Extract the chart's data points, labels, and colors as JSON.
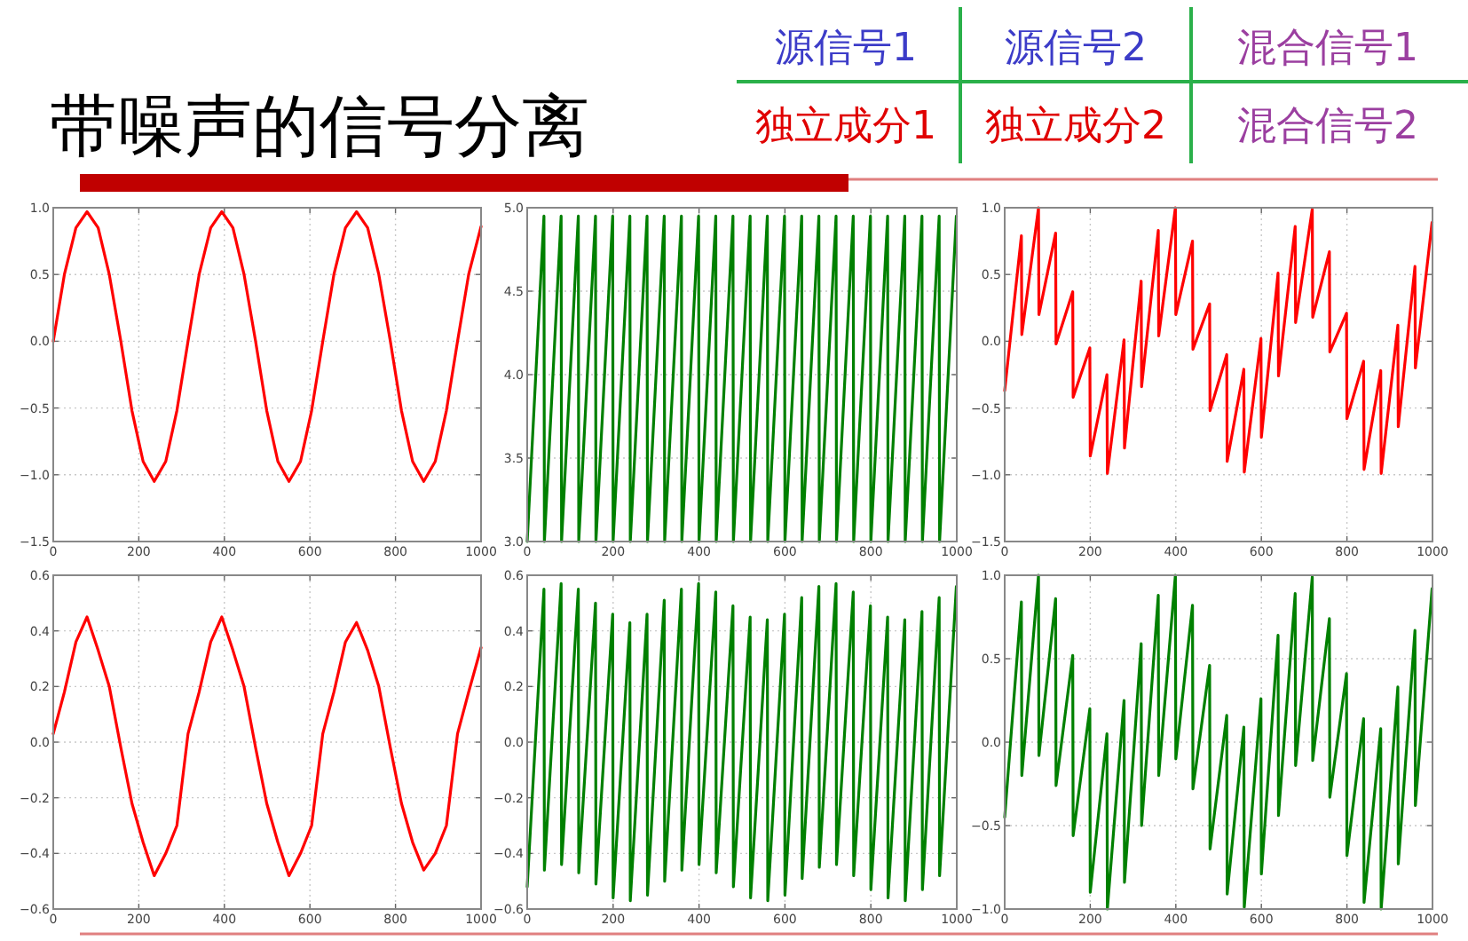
{
  "chart_data": [
    {
      "type": "other",
      "title": "带噪声的信号分离",
      "annotations": [
        "源信号1",
        "源信号2",
        "混合信号1",
        "独立成分1",
        "独立成分2",
        "混合信号2"
      ]
    },
    {
      "type": "line",
      "grid": true,
      "xlim": [
        0,
        1000
      ],
      "xticks": [
        0,
        200,
        400,
        600,
        800,
        1000
      ],
      "ylim": [
        -1.5,
        1.0
      ],
      "yticks": [
        {
          "value": -1.5,
          "label": "−1.5"
        },
        {
          "value": -1.0,
          "label": "−1.0"
        },
        {
          "value": -0.5,
          "label": "−0.5"
        },
        {
          "value": 0,
          "label": "0.0"
        },
        {
          "value": 0.5,
          "label": "0.5"
        },
        {
          "value": 1.0,
          "label": "1.0"
        }
      ],
      "x": [
        0,
        26,
        53,
        79,
        105,
        131,
        158,
        184,
        210,
        236,
        263,
        289,
        315,
        341,
        368,
        394,
        420,
        446,
        473,
        499,
        525,
        551,
        578,
        604,
        630,
        656,
        683,
        709,
        735,
        761,
        788,
        814,
        840,
        866,
        893,
        919,
        945,
        971,
        1000
      ],
      "series": [
        {
          "color": "#ff0000",
          "values": [
            0,
            0.5,
            0.85,
            0.97,
            0.85,
            0.5,
            0,
            -0.52,
            -0.9,
            -1.05,
            -0.9,
            -0.52,
            0,
            0.5,
            0.85,
            0.97,
            0.85,
            0.5,
            0,
            -0.52,
            -0.9,
            -1.05,
            -0.9,
            -0.52,
            0,
            0.5,
            0.85,
            0.97,
            0.85,
            0.5,
            0,
            -0.52,
            -0.9,
            -1.05,
            -0.9,
            -0.52,
            0,
            0.5,
            0.86
          ]
        }
      ]
    },
    {
      "type": "line",
      "grid": true,
      "xlim": [
        0,
        1000
      ],
      "xticks": [
        0,
        200,
        400,
        600,
        800,
        1000
      ],
      "ylim": [
        3.0,
        5.0
      ],
      "yticks": [
        {
          "value": 3.0,
          "label": "3.0"
        },
        {
          "value": 3.5,
          "label": "3.5"
        },
        {
          "value": 4.0,
          "label": "4.0"
        },
        {
          "value": 4.5,
          "label": "4.5"
        },
        {
          "value": 5.0,
          "label": "5.0"
        }
      ],
      "x": [
        0,
        39,
        40,
        79,
        80,
        119,
        120,
        159,
        160,
        199,
        200,
        239,
        240,
        279,
        280,
        319,
        320,
        359,
        360,
        399,
        400,
        439,
        440,
        479,
        480,
        519,
        520,
        559,
        560,
        599,
        600,
        639,
        640,
        679,
        680,
        719,
        720,
        759,
        760,
        799,
        800,
        839,
        840,
        879,
        880,
        919,
        920,
        959,
        960,
        999
      ],
      "series": [
        {
          "color": "#008000",
          "values": [
            3.0,
            4.95,
            3.0,
            4.95,
            3.0,
            4.95,
            3.0,
            4.95,
            3.0,
            4.95,
            3.0,
            4.95,
            3.0,
            4.95,
            3.0,
            4.95,
            3.0,
            4.95,
            3.0,
            4.95,
            3.0,
            4.95,
            3.0,
            4.95,
            3.0,
            4.95,
            3.0,
            4.95,
            3.0,
            4.95,
            3.0,
            4.95,
            3.0,
            4.95,
            3.0,
            4.95,
            3.0,
            4.95,
            3.0,
            4.95,
            3.0,
            4.95,
            3.0,
            4.95,
            3.0,
            4.95,
            3.0,
            4.95,
            3.0,
            4.95
          ]
        }
      ]
    },
    {
      "type": "line",
      "grid": true,
      "xlim": [
        0,
        1000
      ],
      "xticks": [
        0,
        200,
        400,
        600,
        800,
        1000
      ],
      "ylim": [
        -1.5,
        1.0
      ],
      "yticks": [
        {
          "value": -1.5,
          "label": "−1.5"
        },
        {
          "value": -1.0,
          "label": "−1.0"
        },
        {
          "value": -0.5,
          "label": "−0.5"
        },
        {
          "value": 0,
          "label": "0.0"
        },
        {
          "value": 0.5,
          "label": "0.5"
        },
        {
          "value": 1.0,
          "label": "1.0"
        }
      ],
      "x": [
        0,
        39,
        40,
        79,
        80,
        119,
        120,
        159,
        160,
        199,
        200,
        239,
        240,
        279,
        280,
        319,
        320,
        359,
        360,
        399,
        400,
        439,
        440,
        479,
        480,
        519,
        520,
        559,
        560,
        599,
        600,
        639,
        640,
        679,
        680,
        719,
        720,
        759,
        760,
        799,
        800,
        839,
        840,
        879,
        880,
        919,
        920,
        959,
        960,
        999
      ],
      "series": [
        {
          "color": "#ff0000",
          "values": [
            -0.37,
            0.79,
            0.05,
            1.0,
            0.2,
            0.81,
            -0.02,
            0.37,
            -0.42,
            -0.05,
            -0.86,
            -0.25,
            -0.99,
            0.01,
            -0.8,
            0.45,
            -0.34,
            0.83,
            0.04,
            1.0,
            0.2,
            0.75,
            -0.06,
            0.28,
            -0.52,
            -0.1,
            -0.9,
            -0.21,
            -0.98,
            0.02,
            -0.72,
            0.51,
            -0.26,
            0.86,
            0.14,
            0.99,
            0.18,
            0.67,
            -0.08,
            0.21,
            -0.58,
            -0.15,
            -0.96,
            -0.22,
            -0.99,
            0.12,
            -0.64,
            0.56,
            -0.2,
            0.89
          ]
        }
      ]
    },
    {
      "type": "line",
      "grid": true,
      "xlim": [
        0,
        1000
      ],
      "xticks": [
        0,
        200,
        400,
        600,
        800,
        1000
      ],
      "ylim": [
        -0.6,
        0.6
      ],
      "yticks": [
        {
          "value": -0.6,
          "label": "−0.6"
        },
        {
          "value": -0.4,
          "label": "−0.4"
        },
        {
          "value": -0.2,
          "label": "−0.2"
        },
        {
          "value": 0,
          "label": "0.0"
        },
        {
          "value": 0.2,
          "label": "0.2"
        },
        {
          "value": 0.4,
          "label": "0.4"
        },
        {
          "value": 0.6,
          "label": "0.6"
        }
      ],
      "x": [
        0,
        26,
        53,
        79,
        105,
        131,
        158,
        184,
        210,
        236,
        263,
        289,
        315,
        341,
        368,
        394,
        420,
        446,
        473,
        499,
        525,
        551,
        578,
        604,
        630,
        656,
        683,
        709,
        735,
        761,
        788,
        814,
        840,
        866,
        893,
        919,
        945,
        971,
        1000
      ],
      "series": [
        {
          "color": "#ff0000",
          "values": [
            0.03,
            0.18,
            0.36,
            0.45,
            0.33,
            0.2,
            -0.02,
            -0.22,
            -0.36,
            -0.48,
            -0.4,
            -0.3,
            0.03,
            0.18,
            0.36,
            0.45,
            0.33,
            0.2,
            -0.02,
            -0.22,
            -0.36,
            -0.48,
            -0.4,
            -0.3,
            0.03,
            0.18,
            0.36,
            0.43,
            0.33,
            0.2,
            -0.02,
            -0.22,
            -0.36,
            -0.46,
            -0.4,
            -0.3,
            0.03,
            0.18,
            0.34
          ]
        }
      ]
    },
    {
      "type": "line",
      "grid": true,
      "xlim": [
        0,
        1000
      ],
      "xticks": [
        0,
        200,
        400,
        600,
        800,
        1000
      ],
      "ylim": [
        -0.6,
        0.6
      ],
      "yticks": [
        {
          "value": -0.6,
          "label": "−0.6"
        },
        {
          "value": -0.4,
          "label": "−0.4"
        },
        {
          "value": -0.2,
          "label": "−0.2"
        },
        {
          "value": 0,
          "label": "0.0"
        },
        {
          "value": 0.2,
          "label": "0.2"
        },
        {
          "value": 0.4,
          "label": "0.4"
        },
        {
          "value": 0.6,
          "label": "0.6"
        }
      ],
      "x": [
        0,
        39,
        40,
        79,
        80,
        119,
        120,
        159,
        160,
        199,
        200,
        239,
        240,
        279,
        280,
        319,
        320,
        359,
        360,
        399,
        400,
        439,
        440,
        479,
        480,
        519,
        520,
        559,
        560,
        599,
        600,
        639,
        640,
        679,
        680,
        719,
        720,
        759,
        760,
        799,
        800,
        839,
        840,
        879,
        880,
        919,
        920,
        959,
        960,
        999
      ],
      "series": [
        {
          "color": "#008000",
          "values": [
            -0.52,
            0.55,
            -0.46,
            0.57,
            -0.44,
            0.55,
            -0.47,
            0.5,
            -0.51,
            0.46,
            -0.56,
            0.43,
            -0.57,
            0.46,
            -0.55,
            0.51,
            -0.5,
            0.55,
            -0.46,
            0.57,
            -0.44,
            0.54,
            -0.47,
            0.49,
            -0.52,
            0.45,
            -0.56,
            0.44,
            -0.57,
            0.46,
            -0.55,
            0.52,
            -0.49,
            0.56,
            -0.45,
            0.57,
            -0.44,
            0.54,
            -0.48,
            0.49,
            -0.53,
            0.45,
            -0.56,
            0.44,
            -0.57,
            0.47,
            -0.53,
            0.52,
            -0.48,
            0.56
          ]
        }
      ]
    },
    {
      "type": "line",
      "grid": true,
      "xlim": [
        0,
        1000
      ],
      "xticks": [
        0,
        200,
        400,
        600,
        800,
        1000
      ],
      "ylim": [
        -1.0,
        1.0
      ],
      "yticks": [
        {
          "value": -1.0,
          "label": "−1.0"
        },
        {
          "value": -0.5,
          "label": "−0.5"
        },
        {
          "value": 0,
          "label": "0.0"
        },
        {
          "value": 0.5,
          "label": "0.5"
        },
        {
          "value": 1.0,
          "label": "1.0"
        }
      ],
      "x": [
        0,
        39,
        40,
        79,
        80,
        119,
        120,
        159,
        160,
        199,
        200,
        239,
        240,
        279,
        280,
        319,
        320,
        359,
        360,
        399,
        400,
        439,
        440,
        479,
        480,
        519,
        520,
        559,
        560,
        599,
        600,
        639,
        640,
        679,
        680,
        719,
        720,
        759,
        760,
        799,
        800,
        839,
        840,
        879,
        880,
        919,
        920,
        959,
        960,
        999
      ],
      "series": [
        {
          "color": "#008000",
          "values": [
            -0.45,
            0.84,
            -0.2,
            1.0,
            -0.08,
            0.86,
            -0.26,
            0.52,
            -0.56,
            0.2,
            -0.9,
            0.05,
            -1.0,
            0.25,
            -0.84,
            0.59,
            -0.5,
            0.88,
            -0.2,
            1.0,
            -0.1,
            0.82,
            -0.28,
            0.46,
            -0.64,
            0.16,
            -0.91,
            0.09,
            -0.99,
            0.26,
            -0.79,
            0.64,
            -0.44,
            0.89,
            -0.14,
            0.99,
            -0.11,
            0.74,
            -0.33,
            0.41,
            -0.68,
            0.14,
            -0.96,
            0.08,
            -1.0,
            0.33,
            -0.73,
            0.67,
            -0.38,
            0.92
          ]
        }
      ]
    }
  ]
}
